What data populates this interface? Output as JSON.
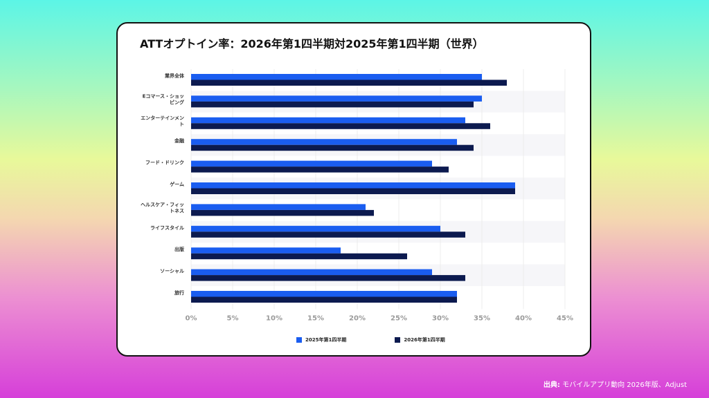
{
  "chart_data": {
    "type": "bar",
    "orientation": "horizontal",
    "title": "ATTオプトイン率：2026年第1四半期対2025年第1四半期（世界）",
    "categories": [
      "業界全体",
      "Eコマース・ショッピング",
      "エンターテインメント",
      "金融",
      "フード・ドリンク",
      "ゲーム",
      "ヘルスケア・フィットネス",
      "ライフスタイル",
      "出版",
      "ソーシャル",
      "旅行"
    ],
    "series": [
      {
        "name": "2025年第1四半期",
        "color": "#1a5df0",
        "values": [
          35,
          35,
          33,
          32,
          29,
          39,
          21,
          30,
          18,
          29,
          32
        ]
      },
      {
        "name": "2026年第1四半期",
        "color": "#0c1a4f",
        "values": [
          38,
          34,
          36,
          34,
          31,
          39,
          22,
          33,
          26,
          33,
          32
        ]
      }
    ],
    "xlim": [
      0,
      45
    ],
    "xticks": [
      "0%",
      "5%",
      "10%",
      "15%",
      "20%",
      "25%",
      "30%",
      "35%",
      "40%",
      "45%"
    ],
    "legend_position": "bottom",
    "grid": true
  },
  "source": {
    "label": "出典:",
    "text": "モバイルアプリ動向 2026年版、Adjust"
  }
}
